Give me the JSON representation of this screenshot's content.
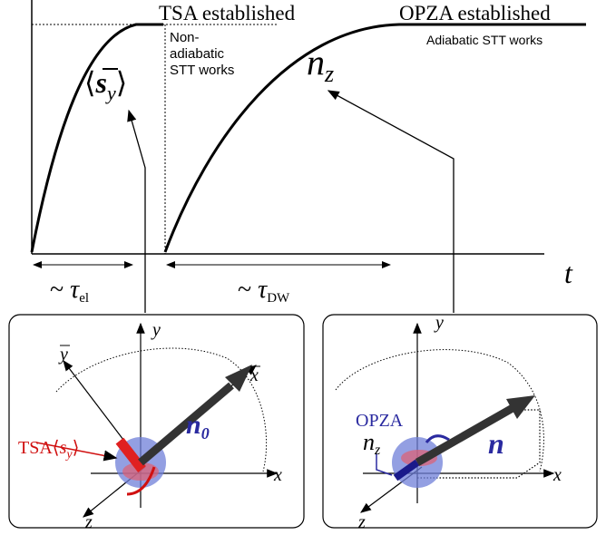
{
  "top_plot": {
    "tsa_label": "TSA established",
    "opza_label": "OPZA established",
    "nonadiabatic_note": [
      "Non-",
      "adiabatic",
      "STT works"
    ],
    "adiabatic_note": "Adiabatic STT works",
    "sy_curve_label": {
      "open": "⟨",
      "symbol": "s",
      "sub": "y",
      "close": "⟩"
    },
    "nz_curve_label": {
      "symbol": "n",
      "sub": "z"
    },
    "time_axis_label": "t",
    "tau_el": {
      "prefix": "~",
      "symbol": "τ",
      "sub": "el"
    },
    "tau_dw": {
      "prefix": "~",
      "symbol": "τ",
      "sub": "DW"
    }
  },
  "left_panel": {
    "y_axis": "y",
    "ybar_axis": "y",
    "xbar_axis": "x",
    "x_axis": "x",
    "z_axis": "z",
    "tsa_label": {
      "prefix": "TSA",
      "open": "⟨",
      "symbol": "s",
      "sub": "y",
      "close": "⟩"
    },
    "n0_label": {
      "symbol": "n",
      "sub": "0"
    }
  },
  "right_panel": {
    "y_axis": "y",
    "x_axis": "x",
    "z_axis": "z",
    "opza_label": "OPZA",
    "nz_label": {
      "symbol": "n",
      "sub": "z"
    },
    "n_label": "n"
  }
}
